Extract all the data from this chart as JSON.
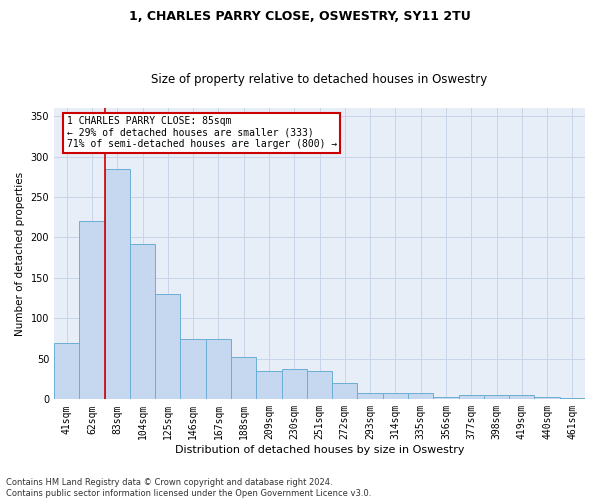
{
  "title1": "1, CHARLES PARRY CLOSE, OSWESTRY, SY11 2TU",
  "title2": "Size of property relative to detached houses in Oswestry",
  "xlabel": "Distribution of detached houses by size in Oswestry",
  "ylabel": "Number of detached properties",
  "footnote": "Contains HM Land Registry data © Crown copyright and database right 2024.\nContains public sector information licensed under the Open Government Licence v3.0.",
  "categories": [
    "41sqm",
    "62sqm",
    "83sqm",
    "104sqm",
    "125sqm",
    "146sqm",
    "167sqm",
    "188sqm",
    "209sqm",
    "230sqm",
    "251sqm",
    "272sqm",
    "293sqm",
    "314sqm",
    "335sqm",
    "356sqm",
    "377sqm",
    "398sqm",
    "419sqm",
    "440sqm",
    "461sqm"
  ],
  "values": [
    70,
    220,
    285,
    192,
    130,
    75,
    75,
    52,
    35,
    38,
    35,
    20,
    8,
    8,
    8,
    3,
    5,
    5,
    5,
    3,
    2
  ],
  "bar_color": "#c5d8ef",
  "bar_edge_color": "#6baed6",
  "bar_linewidth": 0.7,
  "vline_color": "#cc0000",
  "vline_x_index": 1.5,
  "annotation_text": "1 CHARLES PARRY CLOSE: 85sqm\n← 29% of detached houses are smaller (333)\n71% of semi-detached houses are larger (800) →",
  "annotation_box_color": "#ffffff",
  "annotation_box_edge": "#cc0000",
  "grid_color": "#c8d4e8",
  "bg_color": "#e8eef8",
  "ylim": [
    0,
    360
  ],
  "yticks": [
    0,
    50,
    100,
    150,
    200,
    250,
    300,
    350
  ],
  "title1_fontsize": 9,
  "title2_fontsize": 8.5,
  "xlabel_fontsize": 8,
  "ylabel_fontsize": 7.5,
  "tick_fontsize": 7,
  "annot_fontsize": 7
}
